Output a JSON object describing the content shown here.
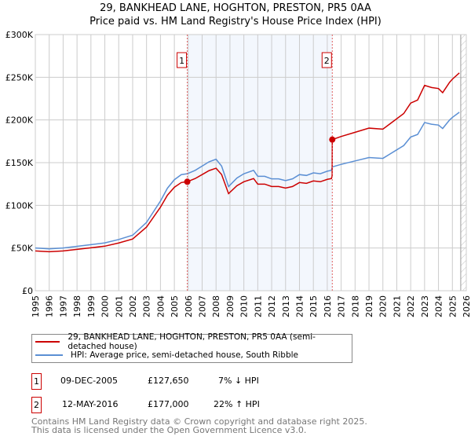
{
  "chart_data": {
    "type": "line",
    "title": "29, BANKHEAD LANE, HOGHTON, PRESTON, PR5 0AA",
    "subtitle": "Price paid vs. HM Land Registry's House Price Index (HPI)",
    "xlabel": "",
    "ylabel": "",
    "xlim": [
      1995,
      2026
    ],
    "ylim": [
      0,
      300000
    ],
    "yticks": [
      0,
      50000,
      100000,
      150000,
      200000,
      250000,
      300000
    ],
    "ytick_labels": [
      "£0",
      "£50K",
      "£100K",
      "£150K",
      "£200K",
      "£250K",
      "£300K"
    ],
    "xticks": [
      "1995",
      "1996",
      "1997",
      "1998",
      "1999",
      "2000",
      "2001",
      "2002",
      "2003",
      "2004",
      "2005",
      "2006",
      "2007",
      "2008",
      "2009",
      "2010",
      "2011",
      "2012",
      "2013",
      "2014",
      "2015",
      "2016",
      "2017",
      "2018",
      "2019",
      "2020",
      "2021",
      "2022",
      "2023",
      "2024",
      "2025",
      "2026"
    ],
    "grid": true,
    "series": [
      {
        "name": "29, BANKHEAD LANE, HOGHTON, PRESTON, PR5 0AA (semi-detached house)",
        "color": "#cc0000",
        "derived_from_hpi_and_sales": true
      },
      {
        "name": "HPI: Average price, semi-detached house, South Ribble",
        "color": "#5b8fd4",
        "x": [
          1995,
          1996,
          1997,
          1998,
          1999,
          2000,
          2001,
          2002,
          2003,
          2004,
          2004.5,
          2005,
          2005.5,
          2005.93,
          2006.5,
          2007,
          2007.5,
          2008,
          2008.4,
          2008.9,
          2009.5,
          2010,
          2010.7,
          2011,
          2011.5,
          2012,
          2012.5,
          2013,
          2013.5,
          2014,
          2014.5,
          2015,
          2015.5,
          2016,
          2016.3,
          2016.36,
          2017,
          2018,
          2019,
          2020,
          2020.5,
          2021,
          2021.5,
          2022,
          2022.5,
          2023,
          2023.5,
          2024,
          2024.3,
          2024.8,
          2025,
          2025.5
        ],
        "y": [
          50000,
          49000,
          50000,
          52000,
          54000,
          56000,
          60000,
          65000,
          80000,
          105000,
          120000,
          130000,
          136000,
          137000,
          141000,
          146000,
          151000,
          154000,
          146000,
          122000,
          132000,
          137000,
          141000,
          134000,
          134000,
          131000,
          131000,
          129000,
          131000,
          136000,
          135000,
          138000,
          137000,
          140000,
          141000,
          145000,
          148000,
          152000,
          156000,
          155000,
          160000,
          165000,
          170000,
          180000,
          183000,
          197000,
          195000,
          194000,
          190000,
          200000,
          203000,
          209000
        ]
      }
    ],
    "sales": [
      {
        "label": "1",
        "x": 2005.93,
        "price": 127650
      },
      {
        "label": "2",
        "x": 2016.36,
        "price": 177000
      }
    ],
    "shaded_range": [
      2005.93,
      2016.36
    ],
    "hatched_from": 2025.6
  },
  "legend": {
    "property": "29, BANKHEAD LANE, HOGHTON, PRESTON, PR5 0AA (semi-detached house)",
    "hpi": "HPI: Average price, semi-detached house, South Ribble"
  },
  "transactions": [
    {
      "num": "1",
      "date": "09-DEC-2005",
      "price": "£127,650",
      "hpi": "7% ↓ HPI"
    },
    {
      "num": "2",
      "date": "12-MAY-2016",
      "price": "£177,000",
      "hpi": "22% ↑ HPI"
    }
  ],
  "footer": {
    "line1": "Contains HM Land Registry data © Crown copyright and database right 2025.",
    "line2": "This data is licensed under the Open Government Licence v3.0."
  }
}
